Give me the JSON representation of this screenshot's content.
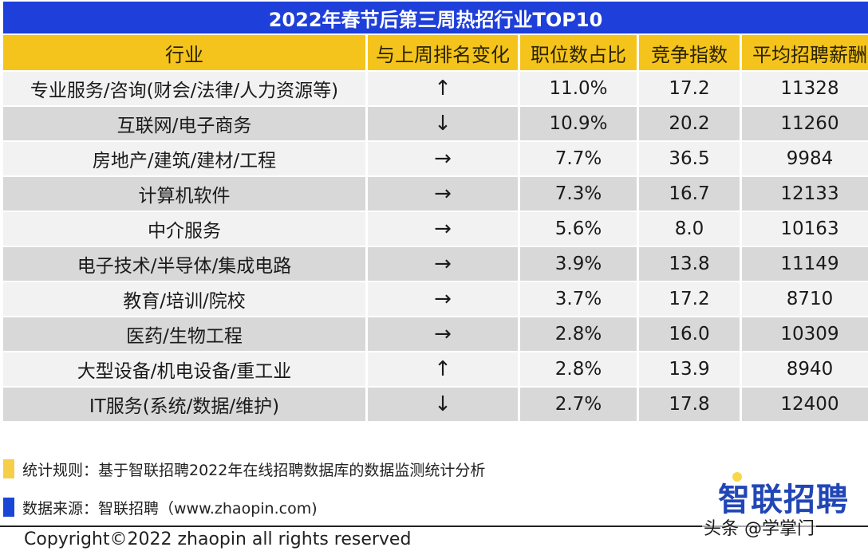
{
  "title": "2022年春节后第三周热招行业TOP10",
  "table": {
    "headers": [
      "行业",
      "与上周排名变化",
      "职位数占比",
      "竞争指数",
      "平均招聘薪酬"
    ],
    "rows": [
      {
        "industry": "专业服务/咨询(财会/法律/人力资源等)",
        "rank_change": "↑",
        "job_share": "11.0%",
        "competition_index": "17.2",
        "avg_salary": "11328"
      },
      {
        "industry": "互联网/电子商务",
        "rank_change": "↓",
        "job_share": "10.9%",
        "competition_index": "20.2",
        "avg_salary": "11260"
      },
      {
        "industry": "房地产/建筑/建材/工程",
        "rank_change": "→",
        "job_share": "7.7%",
        "competition_index": "36.5",
        "avg_salary": "9984"
      },
      {
        "industry": "计算机软件",
        "rank_change": "→",
        "job_share": "7.3%",
        "competition_index": "16.7",
        "avg_salary": "12133"
      },
      {
        "industry": "中介服务",
        "rank_change": "→",
        "job_share": "5.6%",
        "competition_index": "8.0",
        "avg_salary": "10163"
      },
      {
        "industry": "电子技术/半导体/集成电路",
        "rank_change": "→",
        "job_share": "3.9%",
        "competition_index": "13.8",
        "avg_salary": "11149"
      },
      {
        "industry": "教育/培训/院校",
        "rank_change": "→",
        "job_share": "3.7%",
        "competition_index": "17.2",
        "avg_salary": "8710"
      },
      {
        "industry": "医药/生物工程",
        "rank_change": "→",
        "job_share": "2.8%",
        "competition_index": "16.0",
        "avg_salary": "10309"
      },
      {
        "industry": "大型设备/机电设备/重工业",
        "rank_change": "↑",
        "job_share": "2.8%",
        "competition_index": "13.9",
        "avg_salary": "8940"
      },
      {
        "industry": "IT服务(系统/数据/维护)",
        "rank_change": "↓",
        "job_share": "2.7%",
        "competition_index": "17.8",
        "avg_salary": "12400"
      }
    ]
  },
  "notes": {
    "rule": "统计规则：基于智联招聘2022年在线招聘数据库的数据监测统计分析",
    "source": "数据来源：智联招聘（www.zhaopin.com)"
  },
  "copyright": "Copyright©2022 zhaopin all rights reserved",
  "logo": "智联招聘",
  "watermark": "头条 @学掌门",
  "colors": {
    "title_bg": "#1e3fd9",
    "header_bg": "#f4c41c",
    "row_light": "#f2f2f2",
    "row_dark": "#d8d8d8",
    "logo": "#2146b5"
  }
}
